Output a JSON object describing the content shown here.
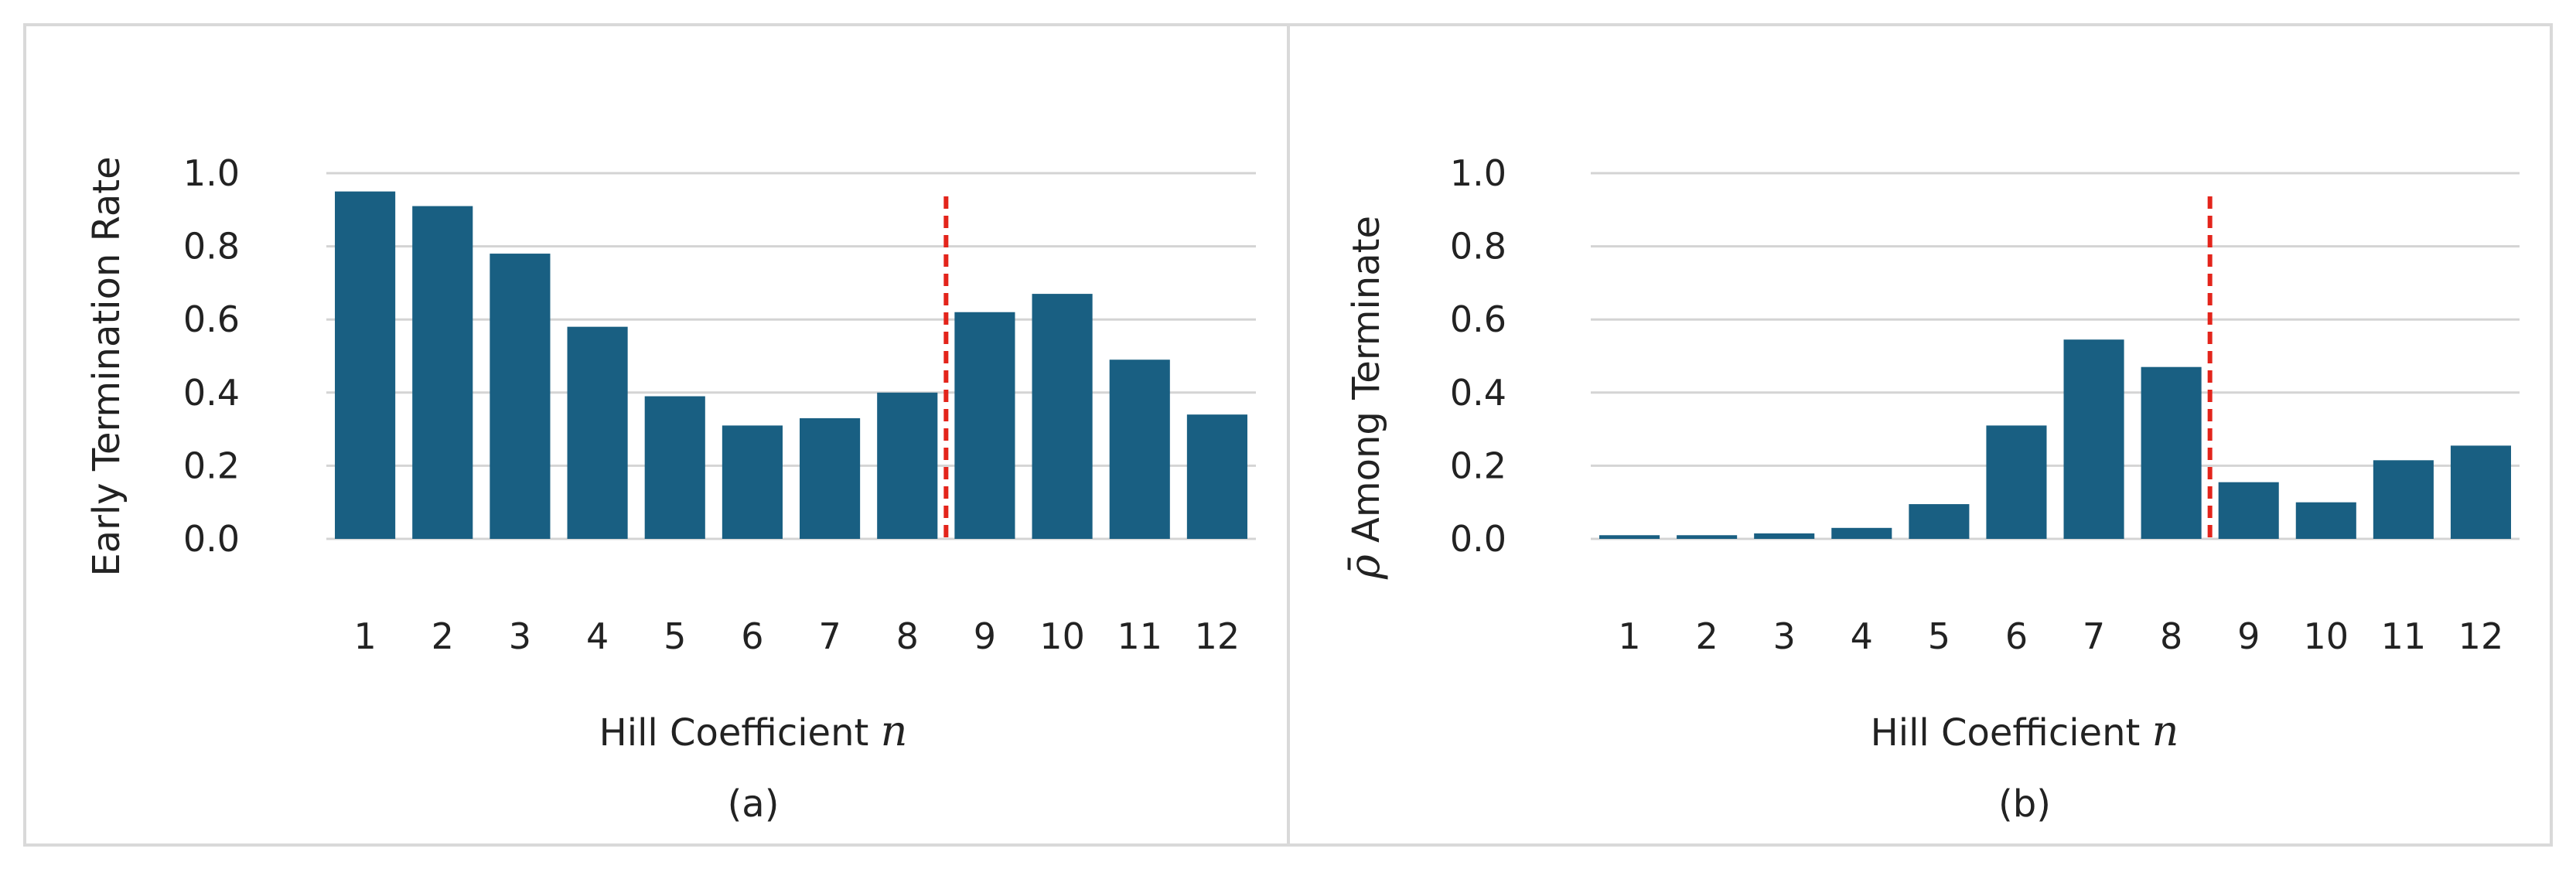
{
  "chart_data": [
    {
      "type": "bar",
      "panel_label": "(a)",
      "xlabel": "Hill Coefficient",
      "xlabel_symbol": "n",
      "ylabel": "Early Termination Rate",
      "ylabel_symbol": "",
      "categories": [
        "1",
        "2",
        "3",
        "4",
        "5",
        "6",
        "7",
        "8",
        "9",
        "10",
        "11",
        "12"
      ],
      "values": [
        0.95,
        0.91,
        0.78,
        0.58,
        0.39,
        0.31,
        0.33,
        0.4,
        0.62,
        0.67,
        0.49,
        0.34
      ],
      "ylim": [
        0,
        1.0
      ],
      "yticks": [
        "0.0",
        "0.2",
        "0.4",
        "0.6",
        "0.8",
        "1.0"
      ],
      "threshold_between": [
        "8",
        "9"
      ],
      "grid": true,
      "legend": "none"
    },
    {
      "type": "bar",
      "panel_label": "(b)",
      "xlabel": "Hill Coefficient",
      "xlabel_symbol": "n",
      "ylabel": "Among Terminate",
      "ylabel_symbol": "ρ̄",
      "categories": [
        "1",
        "2",
        "3",
        "4",
        "5",
        "6",
        "7",
        "8",
        "9",
        "10",
        "11",
        "12"
      ],
      "values": [
        0.01,
        0.01,
        0.015,
        0.03,
        0.095,
        0.31,
        0.545,
        0.47,
        0.155,
        0.1,
        0.215,
        0.255
      ],
      "ylim": [
        0,
        1.0
      ],
      "yticks": [
        "0.0",
        "0.2",
        "0.4",
        "0.6",
        "0.8",
        "1.0"
      ],
      "threshold_between": [
        "8",
        "9"
      ],
      "grid": true,
      "legend": "none"
    }
  ],
  "colors": {
    "bar": "#195f82",
    "threshold": "#e3241b",
    "grid": "#d4d4d4",
    "frame": "#d9d9d9"
  }
}
